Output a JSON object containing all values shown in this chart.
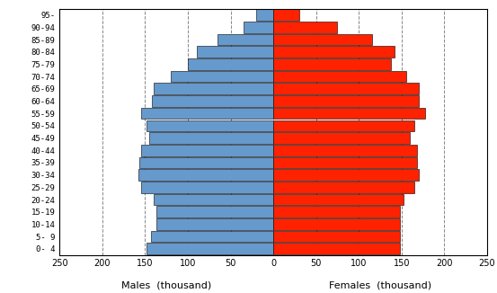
{
  "age_groups": [
    "0- 4",
    "5- 9",
    "10-14",
    "15-19",
    "20-24",
    "25-29",
    "30-34",
    "35-39",
    "40-44",
    "45-49",
    "50-54",
    "55-59",
    "60-64",
    "65-69",
    "70-74",
    "75-79",
    "80-84",
    "85-89",
    "90-94",
    "95-"
  ],
  "males": [
    148,
    143,
    137,
    137,
    140,
    155,
    158,
    157,
    155,
    145,
    148,
    155,
    142,
    140,
    120,
    100,
    90,
    65,
    35,
    20
  ],
  "females": [
    148,
    148,
    148,
    148,
    152,
    165,
    170,
    168,
    168,
    160,
    165,
    178,
    170,
    170,
    155,
    138,
    142,
    115,
    75,
    30
  ],
  "male_color": "#6699CC",
  "female_color": "#FF2200",
  "bar_edge_color": "#000000",
  "background_color": "#FFFFFF",
  "xlabel_males": "Males  (thousand)",
  "xlabel_females": "Females  (thousand)",
  "xlim": 250,
  "grid_color": "#888888",
  "grid_style": "--",
  "grid_positions": [
    -200,
    -150,
    -100,
    -50,
    50,
    100,
    150,
    200
  ]
}
